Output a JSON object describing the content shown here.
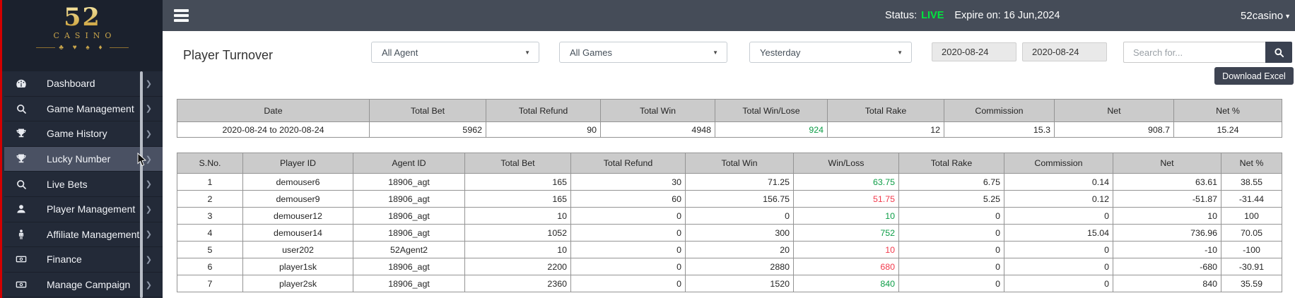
{
  "sidebar": {
    "logo": {
      "number": "52",
      "name": "CASINO",
      "suits": "♣ ♥ ♠ ♦"
    },
    "chevron": "❯",
    "items": [
      {
        "label": "Dashboard",
        "icon": "gauge-icon",
        "active": false
      },
      {
        "label": "Game Management",
        "icon": "search-icon",
        "active": false
      },
      {
        "label": "Game History",
        "icon": "trophy-icon",
        "active": false
      },
      {
        "label": "Lucky Number",
        "icon": "trophy-icon",
        "active": true
      },
      {
        "label": "Live Bets",
        "icon": "search-icon",
        "active": false
      },
      {
        "label": "Player Management",
        "icon": "user-icon",
        "active": false
      },
      {
        "label": "Affiliate Management",
        "icon": "person-icon",
        "active": false
      },
      {
        "label": "Finance",
        "icon": "banknote-icon",
        "active": false
      },
      {
        "label": "Manage Campaign",
        "icon": "banknote-icon",
        "active": false
      }
    ]
  },
  "topbar": {
    "status_label": "Status:",
    "status_value": "LIVE",
    "expire_text": "Expire on: 16 Jun,2024",
    "account": "52casino",
    "account_caret": "▼"
  },
  "page": {
    "title": "Player Turnover"
  },
  "filters": {
    "agent": "All Agent",
    "games": "All Games",
    "period": "Yesterday",
    "date_from": "2020-08-24",
    "date_to": "2020-08-24",
    "search_placeholder": "Search for...",
    "download_label": "Download Excel"
  },
  "colors": {
    "live_green": "#00e53e",
    "win_green": "#0c9d46",
    "loss_red": "#f23a4c",
    "sidebar_accent_red": "#d30000"
  },
  "summary_table": {
    "headers": [
      "Date",
      "Total Bet",
      "Total Refund",
      "Total Win",
      "Total Win/Lose",
      "Total Rake",
      "Commission",
      "Net",
      "Net %"
    ],
    "rows": [
      {
        "cells": [
          "2020-08-24 to 2020-08-24",
          "5962",
          "90",
          "4948",
          "924",
          "12",
          "15.3",
          "908.7",
          "15.24"
        ],
        "color": "green"
      }
    ]
  },
  "detail_table": {
    "headers": [
      "S.No.",
      "Player ID",
      "Agent ID",
      "Total Bet",
      "Total Refund",
      "Total Win",
      "Win/Loss",
      "Total Rake",
      "Commission",
      "Net",
      "Net %"
    ],
    "rows": [
      {
        "cells": [
          "1",
          "demouser6",
          "18906_agt",
          "165",
          "30",
          "71.25",
          "63.75",
          "6.75",
          "0.14",
          "63.61",
          "38.55"
        ],
        "color": "green"
      },
      {
        "cells": [
          "2",
          "demouser9",
          "18906_agt",
          "165",
          "60",
          "156.75",
          "51.75",
          "5.25",
          "0.12",
          "-51.87",
          "-31.44"
        ],
        "color": "red"
      },
      {
        "cells": [
          "3",
          "demouser12",
          "18906_agt",
          "10",
          "0",
          "0",
          "10",
          "0",
          "0",
          "10",
          "100"
        ],
        "color": "green"
      },
      {
        "cells": [
          "4",
          "demouser14",
          "18906_agt",
          "1052",
          "0",
          "300",
          "752",
          "0",
          "15.04",
          "736.96",
          "70.05"
        ],
        "color": "green"
      },
      {
        "cells": [
          "5",
          "user202",
          "52Agent2",
          "10",
          "0",
          "20",
          "10",
          "0",
          "0",
          "-10",
          "-100"
        ],
        "color": "red"
      },
      {
        "cells": [
          "6",
          "player1sk",
          "18906_agt",
          "2200",
          "0",
          "2880",
          "680",
          "0",
          "0",
          "-680",
          "-30.91"
        ],
        "color": "red"
      },
      {
        "cells": [
          "7",
          "player2sk",
          "18906_agt",
          "2360",
          "0",
          "1520",
          "840",
          "0",
          "0",
          "840",
          "35.59"
        ],
        "color": "green"
      }
    ]
  }
}
